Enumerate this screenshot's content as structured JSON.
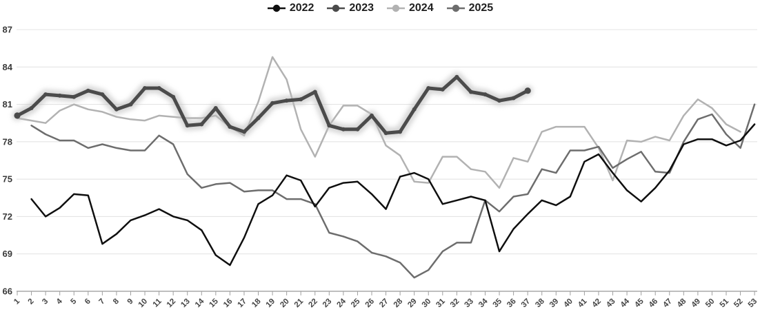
{
  "chart_data": {
    "type": "line",
    "title": "",
    "legend_position": "top",
    "grid": "horizontal",
    "weeks": [
      1,
      2,
      3,
      4,
      5,
      6,
      7,
      8,
      9,
      10,
      11,
      12,
      13,
      14,
      15,
      16,
      17,
      18,
      19,
      20,
      21,
      22,
      23,
      24,
      25,
      26,
      27,
      28,
      29,
      30,
      31,
      32,
      33,
      34,
      35,
      36,
      37,
      38,
      39,
      40,
      41,
      42,
      43,
      44,
      45,
      46,
      47,
      48,
      49,
      50,
      51,
      52,
      53
    ],
    "y_ticks": [
      66,
      69,
      72,
      75,
      78,
      81,
      84,
      87
    ],
    "ylim": [
      66,
      87
    ],
    "series": [
      {
        "name": "2022",
        "color": "#0f0f0f",
        "emphasis": false,
        "values": [
          null,
          73.4,
          72.0,
          72.7,
          73.8,
          73.7,
          69.8,
          70.6,
          71.7,
          72.1,
          72.6,
          72.0,
          71.7,
          70.9,
          68.9,
          68.1,
          70.3,
          73.0,
          73.7,
          75.3,
          74.9,
          72.8,
          74.3,
          74.7,
          74.8,
          73.8,
          72.6,
          75.2,
          75.5,
          75.0,
          73.0,
          73.3,
          73.6,
          73.3,
          69.2,
          71.0,
          72.2,
          73.3,
          72.9,
          73.6,
          76.4,
          77.0,
          75.5,
          74.1,
          73.2,
          74.3,
          75.7,
          77.8,
          78.2,
          78.2,
          77.7,
          78.1,
          79.4
        ]
      },
      {
        "name": "2023",
        "color": "#4b4b4b",
        "emphasis": true,
        "values": [
          80.1,
          80.7,
          81.8,
          81.7,
          81.6,
          82.1,
          81.8,
          80.6,
          81.0,
          82.3,
          82.3,
          81.6,
          79.3,
          79.4,
          80.7,
          79.2,
          78.8,
          79.9,
          81.1,
          81.3,
          81.4,
          82.0,
          79.3,
          79.0,
          79.0,
          80.1,
          78.7,
          78.8,
          80.6,
          82.3,
          82.2,
          83.2,
          82.0,
          81.8,
          81.3,
          81.5,
          82.1,
          null,
          null,
          null,
          null,
          null,
          null,
          null,
          null,
          null,
          null,
          null,
          null,
          null,
          null,
          null,
          null
        ]
      },
      {
        "name": "2024",
        "color": "#b2b2b2",
        "emphasis": false,
        "values": [
          79.9,
          79.7,
          79.5,
          80.5,
          81.0,
          80.6,
          80.4,
          80.0,
          79.8,
          79.7,
          80.1,
          80.0,
          79.9,
          79.9,
          80.1,
          79.2,
          78.5,
          81.2,
          84.8,
          83.0,
          79.0,
          76.8,
          79.3,
          80.9,
          80.9,
          80.2,
          77.7,
          76.9,
          74.8,
          74.7,
          76.8,
          76.8,
          75.8,
          75.6,
          74.3,
          76.7,
          76.4,
          78.8,
          79.2,
          79.2,
          79.2,
          77.5,
          74.9,
          78.1,
          78.0,
          78.4,
          78.1,
          80.1,
          81.4,
          80.7,
          79.4,
          78.8,
          null
        ]
      },
      {
        "name": "2025",
        "color": "#6d6d6d",
        "emphasis": false,
        "values": [
          null,
          79.3,
          78.6,
          78.1,
          78.1,
          77.5,
          77.8,
          77.5,
          77.3,
          77.3,
          78.5,
          77.8,
          75.4,
          74.3,
          74.6,
          74.7,
          74.0,
          74.1,
          74.1,
          73.4,
          73.4,
          73.0,
          70.7,
          70.4,
          70.0,
          69.1,
          68.8,
          68.3,
          67.1,
          67.7,
          69.2,
          69.9,
          69.9,
          73.3,
          72.4,
          73.6,
          73.8,
          75.8,
          75.5,
          77.3,
          77.3,
          77.6,
          75.9,
          76.6,
          77.2,
          75.6,
          75.5,
          78.0,
          79.8,
          80.2,
          78.6,
          77.5,
          81.0
        ]
      }
    ]
  }
}
